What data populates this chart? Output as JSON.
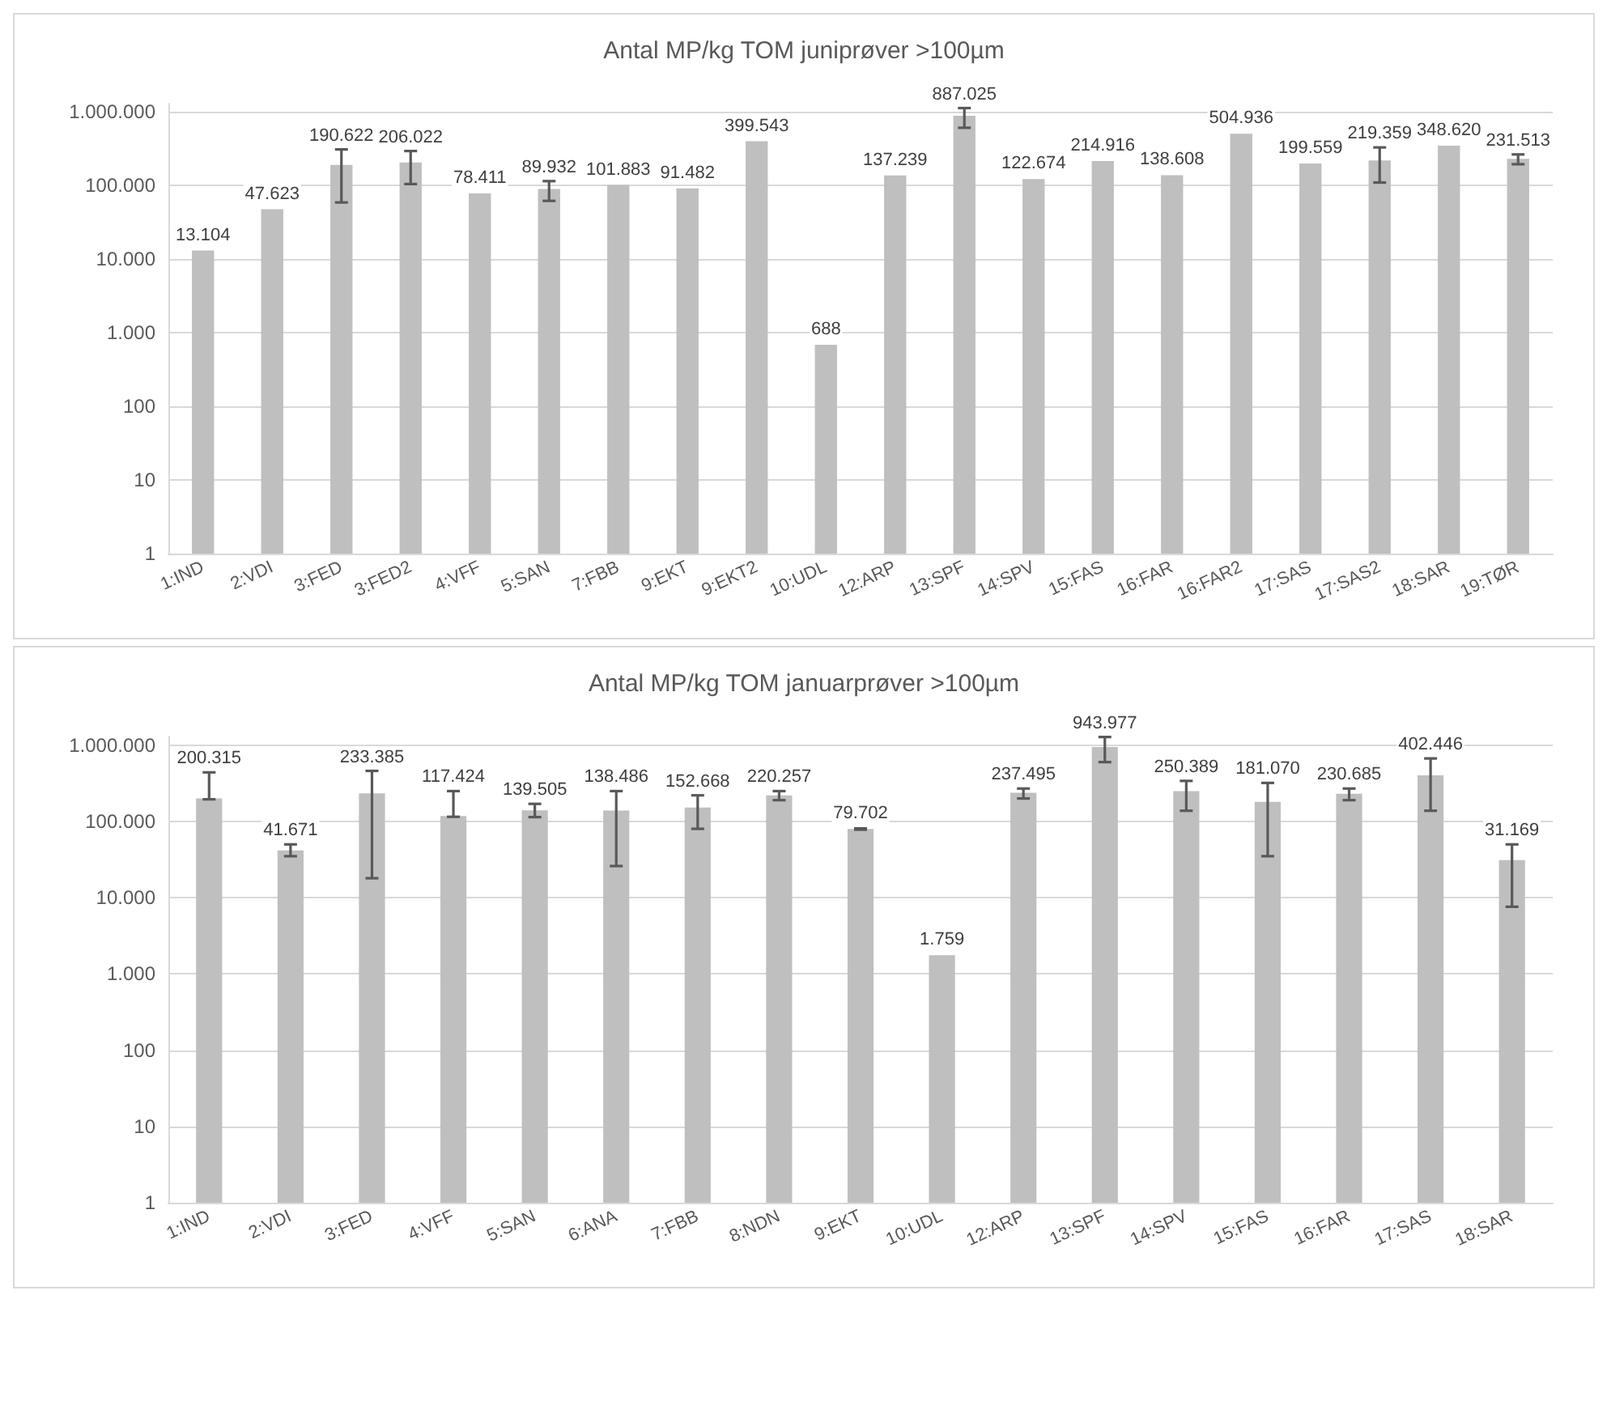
{
  "chart_data": [
    {
      "type": "bar",
      "title": "Antal MP/kg TOM juniprøver >100µm",
      "categories": [
        "1:IND",
        "2:VDI",
        "3:FED",
        "3:FED2",
        "4:VFF",
        "5:SAN",
        "7:FBB",
        "9:EKT",
        "9:EKT2",
        "10:UDL",
        "12:ARP",
        "13:SPF",
        "14:SPV",
        "15:FAS",
        "16:FAR",
        "16:FAR2",
        "17:SAS",
        "17:SAS2",
        "18:SAR",
        "19:TØR"
      ],
      "values": [
        13104,
        47623,
        190622,
        206022,
        78411,
        89932,
        101883,
        91482,
        399543,
        688,
        137239,
        887025,
        122674,
        214916,
        138608,
        504936,
        199559,
        219359,
        348620,
        231513
      ],
      "errors": [
        null,
        null,
        [
          59000,
          310000
        ],
        [
          105000,
          295000
        ],
        null,
        [
          62000,
          115000
        ],
        null,
        null,
        null,
        null,
        null,
        [
          610000,
          1130000
        ],
        null,
        null,
        null,
        null,
        null,
        [
          110000,
          330000
        ],
        null,
        [
          195000,
          265000
        ]
      ],
      "value_labels": [
        "13.104",
        "47.623",
        "190.622",
        "206.022",
        "78.411",
        "89.932",
        "101.883",
        "91.482",
        "399.543",
        "688",
        "137.239",
        "887.025",
        "122.674",
        "214.916",
        "138.608",
        "504.936",
        "199.559",
        "219.359",
        "348.620",
        "231.513"
      ],
      "color": "#bfbfbf",
      "log": true,
      "ylim": [
        1,
        1300000
      ],
      "yticks": [
        {
          "value": 1,
          "label": "1"
        },
        {
          "value": 10,
          "label": "10"
        },
        {
          "value": 100,
          "label": "100"
        },
        {
          "value": 1000,
          "label": "1.000"
        },
        {
          "value": 10000,
          "label": "10.000"
        },
        {
          "value": 100000,
          "label": "100.000"
        },
        {
          "value": 1000000,
          "label": "1.000.000"
        }
      ],
      "grid": "y"
    },
    {
      "type": "bar",
      "title": "Antal MP/kg TOM januarprøver >100µm",
      "categories": [
        "1:IND",
        "2:VDI",
        "3:FED",
        "4:VFF",
        "5:SAN",
        "6:ANA",
        "7:FBB",
        "8:NDN",
        "9:EKT",
        "10:UDL",
        "12:ARP",
        "13:SPF",
        "14:SPV",
        "15:FAS",
        "16:FAR",
        "17:SAS",
        "18:SAR"
      ],
      "values": [
        200315,
        41671,
        233385,
        117424,
        139505,
        138486,
        152668,
        220257,
        79702,
        1759,
        237495,
        943977,
        250389,
        181070,
        230685,
        402446,
        31169
      ],
      "errors": [
        [
          195000,
          440000
        ],
        [
          35000,
          50000
        ],
        [
          18000,
          460000
        ],
        [
          115000,
          250000
        ],
        [
          114000,
          170000
        ],
        [
          26000,
          250000
        ],
        [
          80000,
          220000
        ],
        [
          190000,
          250000
        ],
        [
          78000,
          81000
        ],
        null,
        [
          200000,
          270000
        ],
        [
          600000,
          1280000
        ],
        [
          138000,
          340000
        ],
        [
          35000,
          320000
        ],
        [
          190000,
          270000
        ],
        [
          138000,
          670000
        ],
        [
          7600,
          50000
        ]
      ],
      "value_labels": [
        "200.315",
        "41.671",
        "233.385",
        "117.424",
        "139.505",
        "138.486",
        "152.668",
        "220.257",
        "79.702",
        "1.759",
        "237.495",
        "943.977",
        "250.389",
        "181.070",
        "230.685",
        "402.446",
        "31.169"
      ],
      "color": "#bfbfbf",
      "log": true,
      "ylim": [
        1,
        1300000
      ],
      "yticks": [
        {
          "value": 1,
          "label": "1"
        },
        {
          "value": 10,
          "label": "10"
        },
        {
          "value": 100,
          "label": "100"
        },
        {
          "value": 1000,
          "label": "1.000"
        },
        {
          "value": 10000,
          "label": "10.000"
        },
        {
          "value": 100000,
          "label": "100.000"
        },
        {
          "value": 1000000,
          "label": "1.000.000"
        }
      ],
      "grid": "y"
    }
  ]
}
